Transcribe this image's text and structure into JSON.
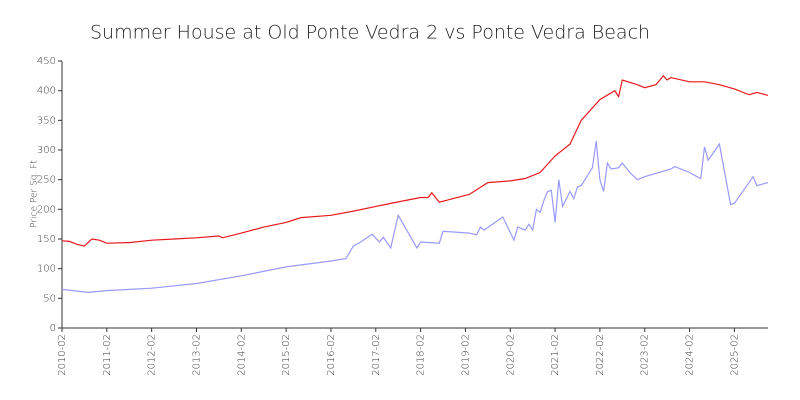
{
  "chart_data": {
    "type": "line",
    "title": "Summer House at Old Ponte Vedra 2 vs Ponte Vedra Beach",
    "y_label": "Price Per Sq. Ft",
    "xlim": [
      "2010-02",
      "2025-11"
    ],
    "xticks": [
      "2010-02",
      "2011-02",
      "2012-02",
      "2013-02",
      "2014-02",
      "2015-02",
      "2016-02",
      "2017-02",
      "2018-02",
      "2019-02",
      "2020-02",
      "2021-02",
      "2022-02",
      "2023-02",
      "2024-02",
      "2025-02"
    ],
    "ylim": [
      0,
      450
    ],
    "yticks": [
      0,
      50,
      100,
      150,
      200,
      250,
      300,
      350,
      400,
      450
    ],
    "series": [
      {
        "color": "#e8191c",
        "x": [
          "2010-02",
          "2010-04",
          "2010-06",
          "2010-08",
          "2010-10",
          "2010-12",
          "2011-02",
          "2011-08",
          "2012-02",
          "2012-08",
          "2013-02",
          "2013-08",
          "2013-09",
          "2014-02",
          "2014-08",
          "2015-02",
          "2015-04",
          "2015-06",
          "2016-02",
          "2016-08",
          "2017-02",
          "2017-06",
          "2018-02",
          "2018-04",
          "2018-05",
          "2018-07",
          "2019-01",
          "2019-03",
          "2019-08",
          "2020-02",
          "2020-06",
          "2020-10",
          "2021-02",
          "2021-06",
          "2021-09",
          "2022-02",
          "2022-06",
          "2022-07",
          "2022-08",
          "2022-12",
          "2023-02",
          "2023-05",
          "2023-07",
          "2023-08",
          "2023-09",
          "2024-02",
          "2024-06",
          "2024-10",
          "2025-02",
          "2025-06",
          "2025-08",
          "2025-11"
        ],
        "values": [
          147,
          146,
          141,
          138,
          150,
          148,
          143,
          144,
          148,
          150,
          152,
          155,
          152,
          160,
          170,
          178,
          182,
          186,
          190,
          197,
          205,
          210,
          220,
          220,
          228,
          212,
          222,
          225,
          245,
          248,
          252,
          262,
          290,
          310,
          350,
          385,
          400,
          390,
          418,
          410,
          405,
          410,
          425,
          418,
          422,
          415,
          415,
          410,
          403,
          393,
          397,
          392
        ]
      },
      {
        "color": "#9999ff",
        "x": [
          "2010-02",
          "2010-09",
          "2011-02",
          "2012-02",
          "2013-02",
          "2014-02",
          "2015-02",
          "2016-02",
          "2016-06",
          "2016-08",
          "2016-10",
          "2017-01",
          "2017-03",
          "2017-04",
          "2017-06",
          "2017-08",
          "2018-01",
          "2018-02",
          "2018-07",
          "2018-08",
          "2019-03",
          "2019-05",
          "2019-06",
          "2019-07",
          "2019-12",
          "2020-03",
          "2020-04",
          "2020-06",
          "2020-07",
          "2020-08",
          "2020-09",
          "2020-10",
          "2020-11",
          "2020-12",
          "2021-01",
          "2021-02",
          "2021-03",
          "2021-04",
          "2021-06",
          "2021-07",
          "2021-08",
          "2021-09",
          "2021-12",
          "2022-01",
          "2022-02",
          "2022-03",
          "2022-04",
          "2022-05",
          "2022-07",
          "2022-08",
          "2022-10",
          "2022-12",
          "2023-02",
          "2023-09",
          "2023-10",
          "2024-02",
          "2024-04",
          "2024-05",
          "2024-06",
          "2024-07",
          "2024-10",
          "2025-01",
          "2025-02",
          "2025-07",
          "2025-08",
          "2025-11"
        ],
        "values": [
          65,
          60,
          63,
          67,
          75,
          88,
          103,
          113,
          117,
          138,
          145,
          158,
          145,
          153,
          135,
          190,
          135,
          145,
          143,
          163,
          160,
          157,
          170,
          165,
          187,
          148,
          170,
          165,
          175,
          165,
          200,
          195,
          215,
          230,
          232,
          178,
          250,
          205,
          230,
          218,
          238,
          240,
          270,
          315,
          250,
          230,
          278,
          268,
          270,
          278,
          262,
          250,
          255,
          268,
          272,
          262,
          255,
          252,
          305,
          283,
          310,
          208,
          210,
          255,
          240,
          245
        ]
      }
    ]
  }
}
